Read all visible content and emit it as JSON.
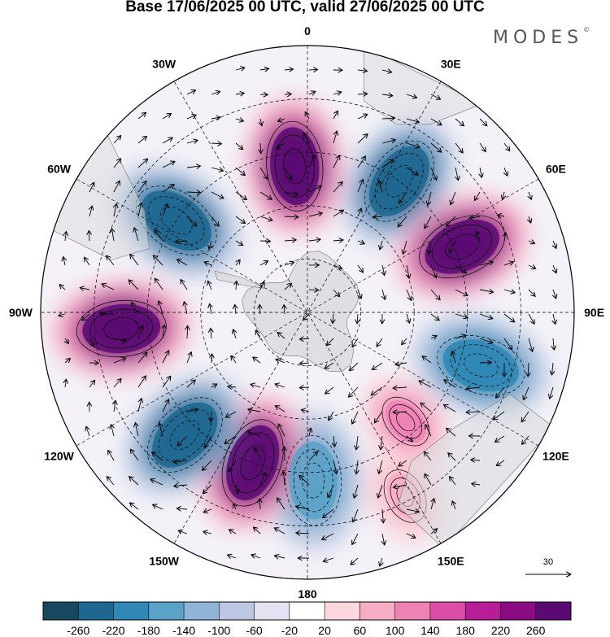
{
  "title": "Base 17/06/2025 00 UTC, valid 27/06/2025 00 UTC",
  "brand": "MODES",
  "brand_mark": "©",
  "longitude_labels": [
    {
      "key": "lon-0",
      "text": "0"
    },
    {
      "key": "lon-30e",
      "text": "30E"
    },
    {
      "key": "lon-60e",
      "text": "60E"
    },
    {
      "key": "lon-90e",
      "text": "90E"
    },
    {
      "key": "lon-120e",
      "text": "120E"
    },
    {
      "key": "lon-150e",
      "text": "150E"
    },
    {
      "key": "lon-180",
      "text": "180"
    },
    {
      "key": "lon-150w",
      "text": "150W"
    },
    {
      "key": "lon-120w",
      "text": "120W"
    },
    {
      "key": "lon-90w",
      "text": "90W"
    },
    {
      "key": "lon-60w",
      "text": "60W"
    },
    {
      "key": "lon-30w",
      "text": "30W"
    }
  ],
  "vector_scale_label": "30",
  "colorbar": {
    "labels": [
      "-260",
      "-220",
      "-180",
      "-140",
      "-100",
      "-60",
      "-20",
      "20",
      "60",
      "100",
      "140",
      "180",
      "220",
      "260"
    ],
    "colors": [
      "#17485f",
      "#1e6790",
      "#2f88b5",
      "#5aa2c8",
      "#8fb4d8",
      "#bcc8e2",
      "#e4e2f2",
      "#ffffff",
      "#fad8de",
      "#f7aec4",
      "#ee82b5",
      "#db4ea8",
      "#b81c97",
      "#8c0b84",
      "#5b0a73"
    ]
  },
  "anomaly_centers": [
    {
      "sign": "positive",
      "level": 260,
      "lon_deg": -5,
      "colat_frac": 0.55
    },
    {
      "sign": "negative",
      "level": -260,
      "lon_deg": 35,
      "colat_frac": 0.6
    },
    {
      "sign": "positive",
      "level": 260,
      "lon_deg": 67,
      "colat_frac": 0.63
    },
    {
      "sign": "negative",
      "level": -220,
      "lon_deg": 107,
      "colat_frac": 0.68
    },
    {
      "sign": "positive",
      "level": 100,
      "lon_deg": 138,
      "colat_frac": 0.55
    },
    {
      "sign": "positive",
      "level": 60,
      "lon_deg": 152,
      "colat_frac": 0.78
    },
    {
      "sign": "negative",
      "level": -180,
      "lon_deg": 178,
      "colat_frac": 0.63
    },
    {
      "sign": "positive",
      "level": 260,
      "lon_deg": -160,
      "colat_frac": 0.6
    },
    {
      "sign": "negative",
      "level": -260,
      "lon_deg": -135,
      "colat_frac": 0.65
    },
    {
      "sign": "positive",
      "level": 260,
      "lon_deg": -95,
      "colat_frac": 0.7
    },
    {
      "sign": "negative",
      "level": -260,
      "lon_deg": -55,
      "colat_frac": 0.6
    }
  ]
}
